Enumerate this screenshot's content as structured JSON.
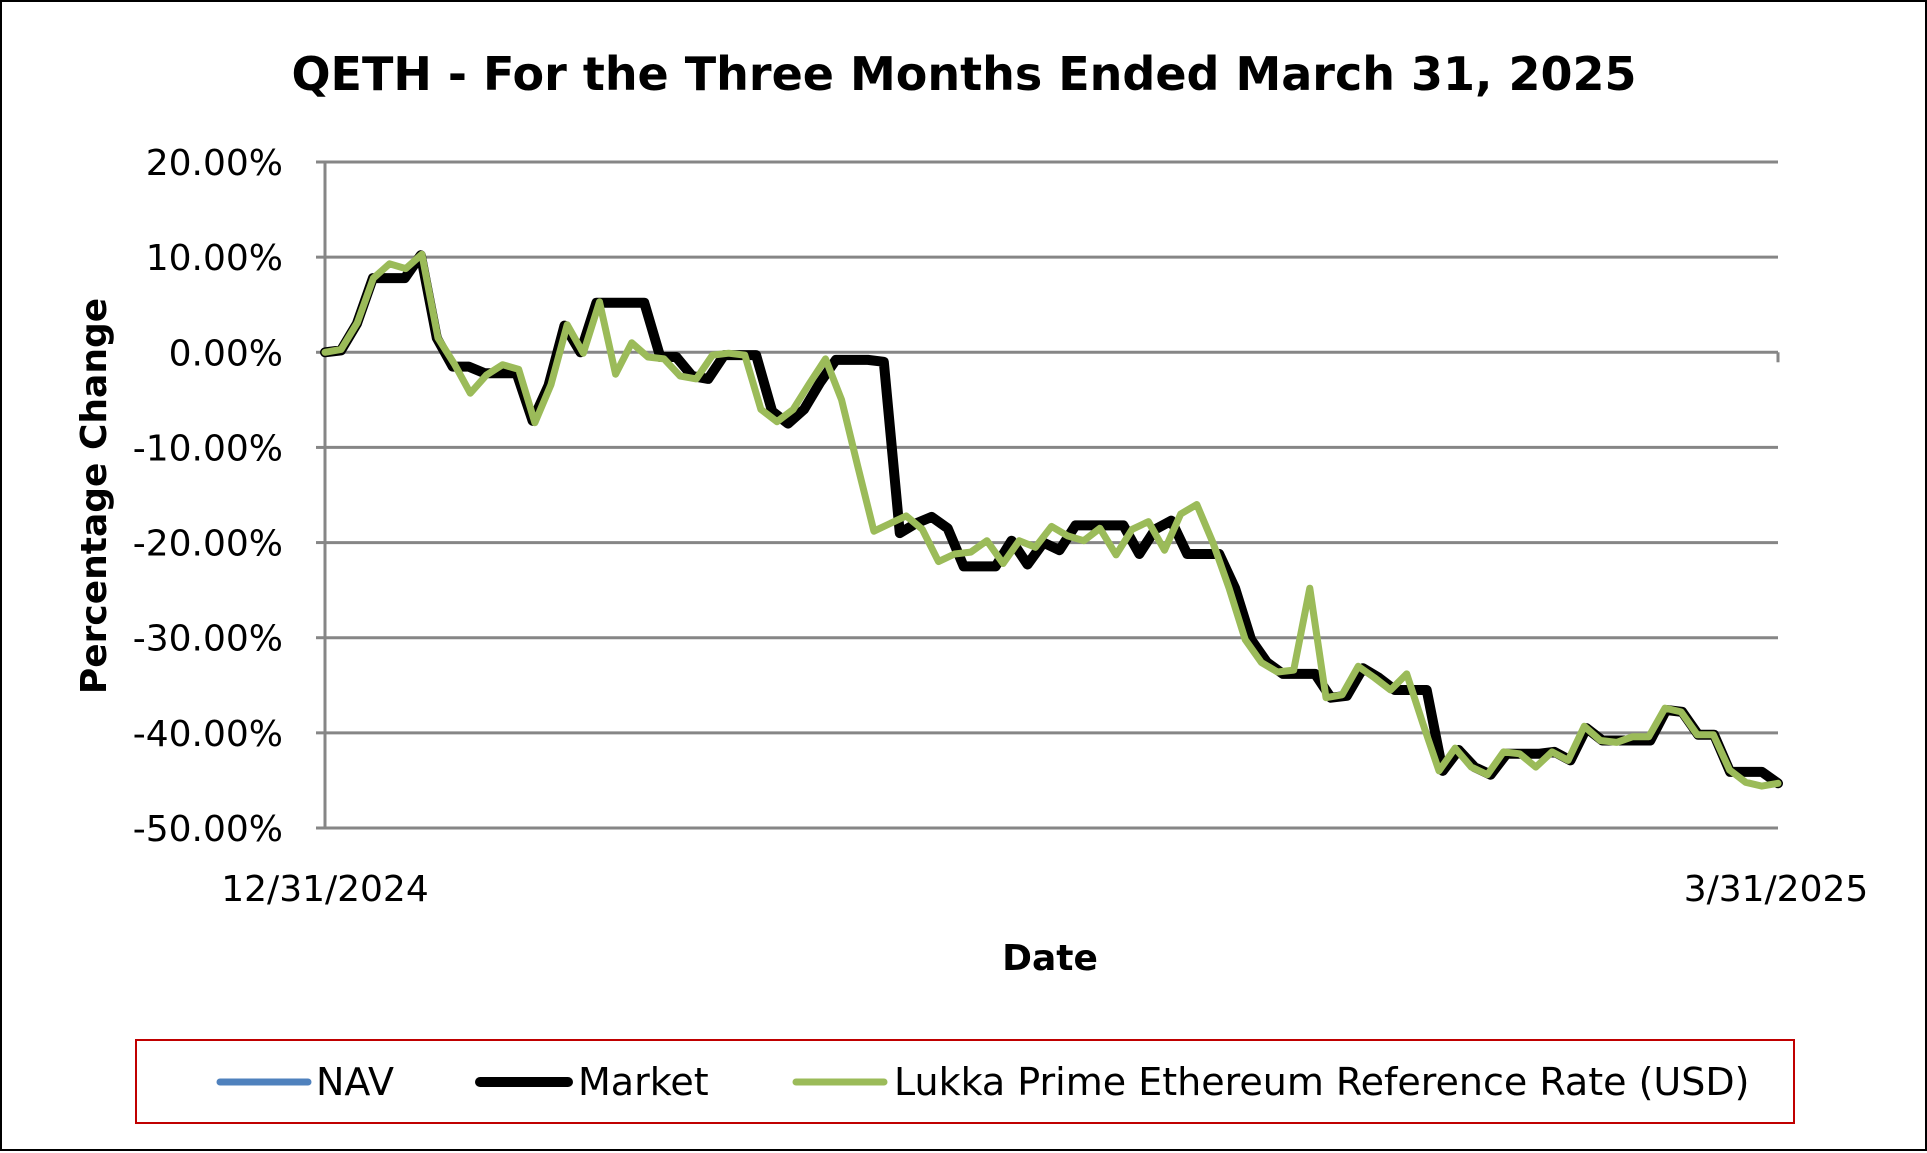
{
  "chart_data": {
    "type": "line",
    "title": "QETH - For the Three Months Ended March 31, 2025",
    "xlabel": "Date",
    "ylabel": "Percentage Change",
    "x_range": [
      "12/31/2024",
      "3/31/2025"
    ],
    "x_tick_labels": [
      "12/31/2024",
      "3/31/2025"
    ],
    "y_tick_labels": [
      "20.00%",
      "10.00%",
      "0.00%",
      "-10.00%",
      "-20.00%",
      "-30.00%",
      "-40.00%",
      "-50.00%"
    ],
    "ylim": [
      -50,
      20
    ],
    "y_unit": "%",
    "grid": "horizontal",
    "legend_position": "bottom",
    "series": [
      {
        "name": "NAV",
        "color": "#4F81BD",
        "values": [
          0.0,
          0.2,
          3.0,
          7.8,
          7.8,
          7.8,
          10.2,
          1.5,
          -1.5,
          -1.5,
          -2.2,
          -2.2,
          -2.2,
          -7.2,
          -3.5,
          2.8,
          0.0,
          5.2,
          5.2,
          5.2,
          5.2,
          -0.5,
          -0.5,
          -2.5,
          -2.8,
          -0.3,
          -0.3,
          -0.3,
          -6.2,
          -7.5,
          -6.0,
          -3.2,
          -0.8,
          -0.8,
          -0.8,
          -1.0,
          -19.0,
          -18.0,
          -17.3,
          -18.5,
          -22.5,
          -22.5,
          -22.5,
          -19.8,
          -22.3,
          -20.0,
          -20.8,
          -18.2,
          -18.2,
          -18.2,
          -18.2,
          -21.2,
          -18.6,
          -17.7,
          -21.2,
          -21.2,
          -21.2,
          -24.8,
          -30.2,
          -32.6,
          -33.8,
          -33.8,
          -33.8,
          -36.3,
          -36.1,
          -33.2,
          -34.2,
          -35.5,
          -35.5,
          -35.5,
          -44.0,
          -41.8,
          -43.6,
          -44.4,
          -42.2,
          -42.2,
          -42.2,
          -42.0,
          -42.9,
          -39.5,
          -40.8,
          -40.8,
          -40.8,
          -40.8,
          -37.6,
          -37.8,
          -40.2,
          -40.2,
          -44.1,
          -44.1,
          -44.1,
          -45.3
        ]
      },
      {
        "name": "Market",
        "color": "#000000",
        "values": [
          0.0,
          0.2,
          3.0,
          7.8,
          7.8,
          7.8,
          10.2,
          1.5,
          -1.5,
          -1.5,
          -2.2,
          -2.2,
          -2.2,
          -7.2,
          -3.5,
          2.8,
          0.0,
          5.2,
          5.2,
          5.2,
          5.2,
          -0.5,
          -0.5,
          -2.5,
          -2.8,
          -0.3,
          -0.3,
          -0.3,
          -6.2,
          -7.5,
          -6.0,
          -3.2,
          -0.8,
          -0.8,
          -0.8,
          -1.0,
          -19.0,
          -18.0,
          -17.3,
          -18.5,
          -22.5,
          -22.5,
          -22.5,
          -19.8,
          -22.3,
          -20.0,
          -20.8,
          -18.2,
          -18.2,
          -18.2,
          -18.2,
          -21.2,
          -18.6,
          -17.7,
          -21.2,
          -21.2,
          -21.2,
          -24.8,
          -30.2,
          -32.6,
          -33.8,
          -33.8,
          -33.8,
          -36.3,
          -36.1,
          -33.2,
          -34.2,
          -35.5,
          -35.5,
          -35.5,
          -44.0,
          -41.8,
          -43.6,
          -44.4,
          -42.2,
          -42.2,
          -42.2,
          -42.0,
          -42.9,
          -39.5,
          -40.8,
          -40.8,
          -40.8,
          -40.8,
          -37.6,
          -37.8,
          -40.2,
          -40.2,
          -44.1,
          -44.1,
          -44.1,
          -45.3
        ]
      },
      {
        "name": "Lukka Prime Ethereum Reference Rate (USD)",
        "color": "#9BBB59",
        "values": [
          0.0,
          0.3,
          3.1,
          7.8,
          9.3,
          8.8,
          10.3,
          1.5,
          -1.2,
          -4.3,
          -2.4,
          -1.3,
          -1.8,
          -7.4,
          -3.4,
          2.9,
          -0.1,
          5.3,
          -2.3,
          1.0,
          -0.5,
          -0.7,
          -2.5,
          -2.8,
          -0.3,
          -0.1,
          -0.3,
          -6.0,
          -7.3,
          -6.0,
          -3.3,
          -0.7,
          -5.0,
          -12.0,
          -18.8,
          -18.0,
          -17.2,
          -18.6,
          -22.0,
          -21.2,
          -21.0,
          -19.8,
          -22.2,
          -19.8,
          -20.5,
          -18.3,
          -19.3,
          -19.8,
          -18.5,
          -21.3,
          -18.6,
          -17.8,
          -20.8,
          -17.0,
          -16.0,
          -20.0,
          -24.8,
          -30.2,
          -32.6,
          -33.6,
          -33.4,
          -24.8,
          -36.3,
          -36.0,
          -33.0,
          -34.2,
          -35.5,
          -33.8,
          -39.0,
          -44.0,
          -41.6,
          -43.6,
          -44.4,
          -42.0,
          -42.2,
          -43.6,
          -42.0,
          -42.9,
          -39.3,
          -40.8,
          -41.0,
          -40.4,
          -40.4,
          -37.4,
          -37.8,
          -40.2,
          -40.2,
          -43.9,
          -45.2,
          -45.6,
          -45.3
        ]
      }
    ]
  }
}
